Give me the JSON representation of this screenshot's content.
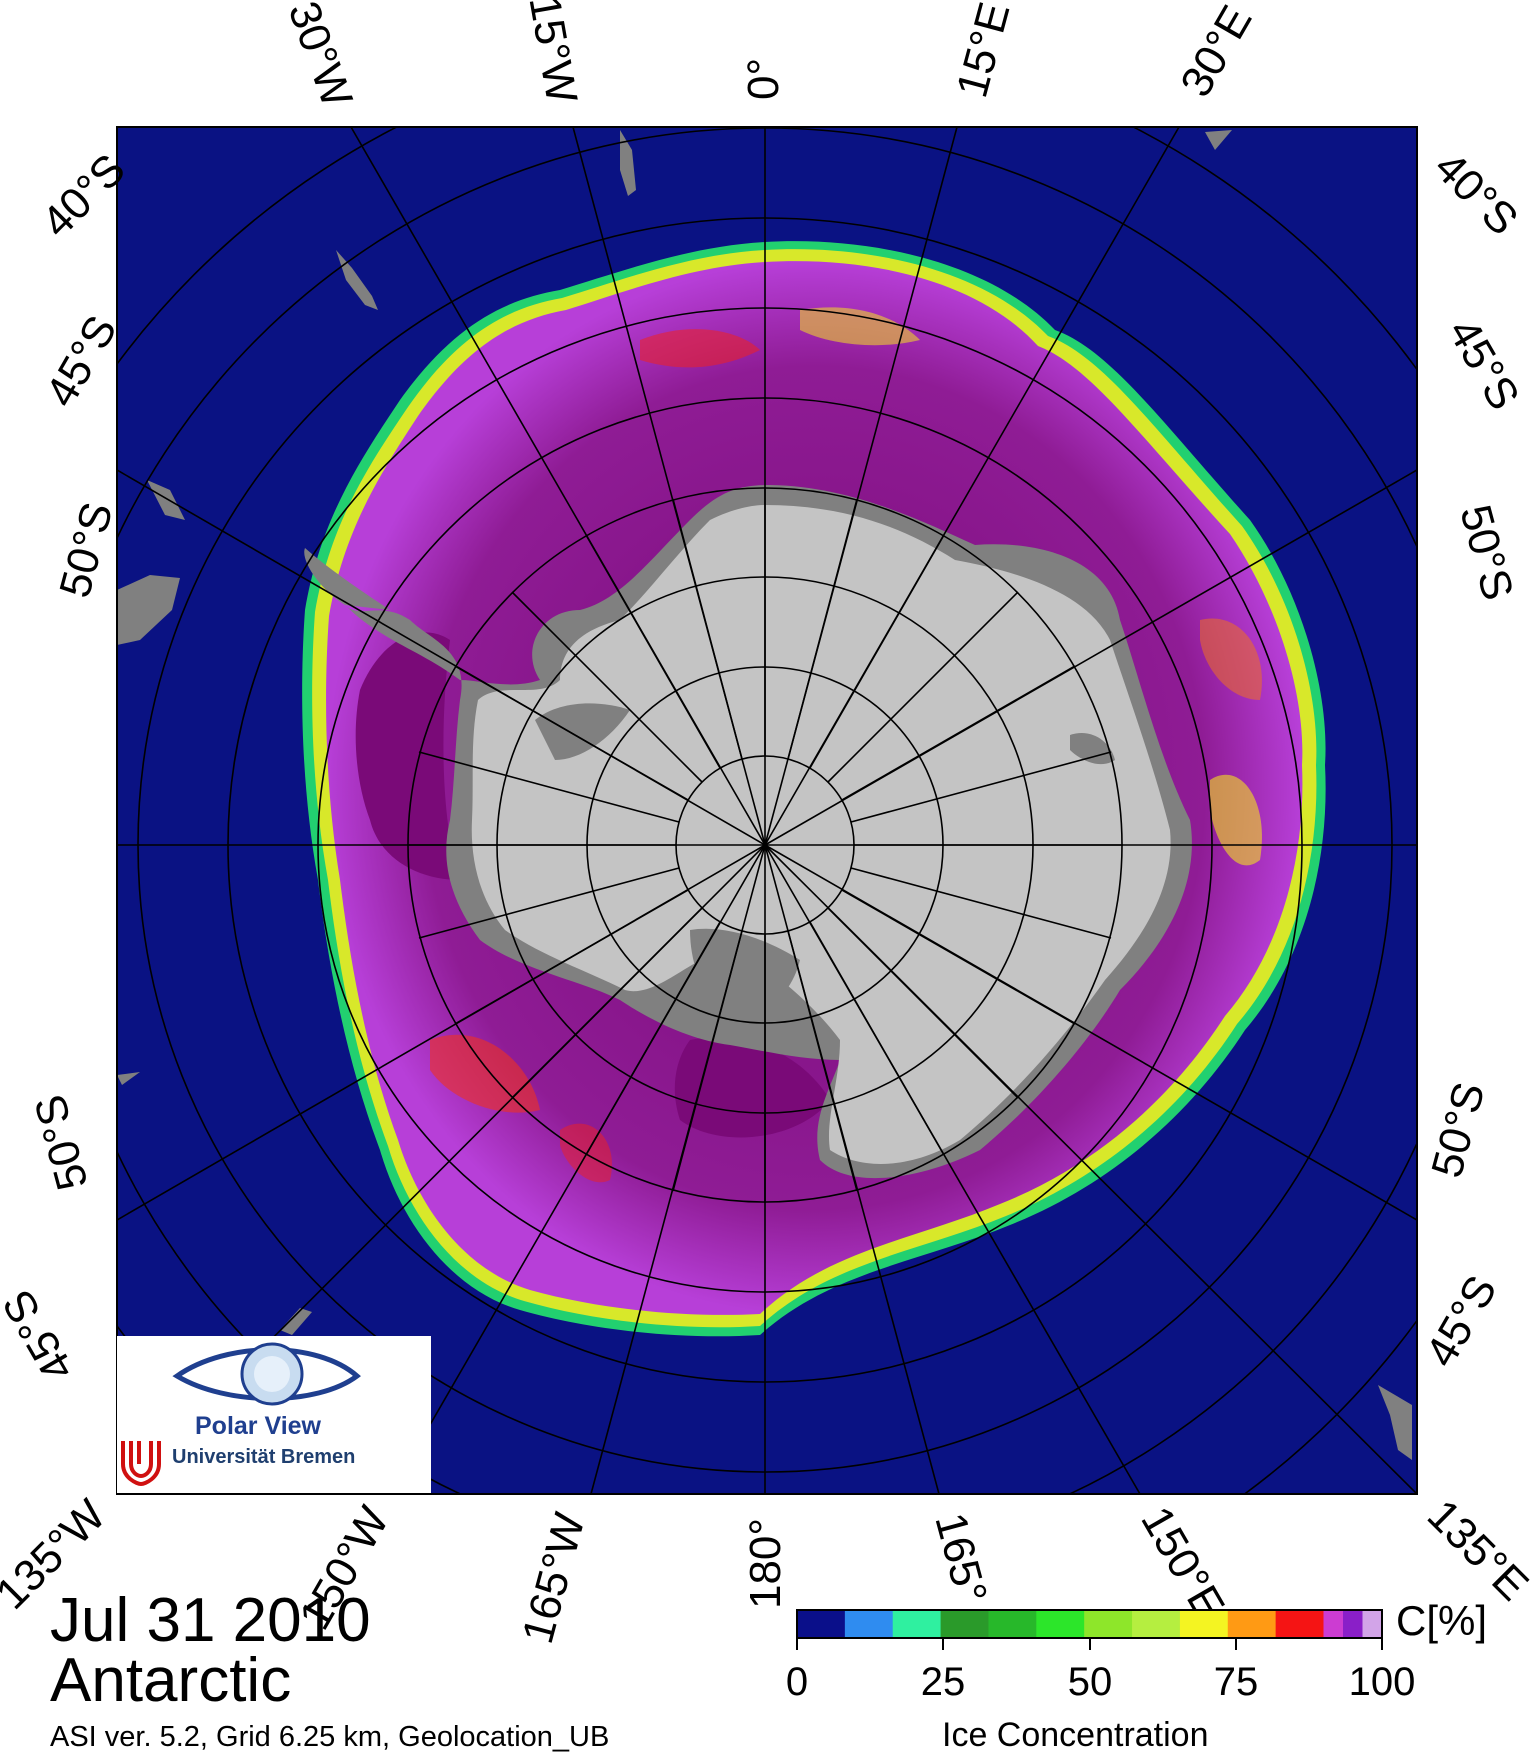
{
  "map": {
    "date": "Jul 31 2010",
    "region": "Antarctic",
    "info": "ASI ver. 5.2,  Grid 6.25 km, Geolocation_UB",
    "top_longitudes": [
      "30°W",
      "15°W",
      "0°",
      "15°E",
      "30°E"
    ],
    "bottom_longitudes": [
      "135°W",
      "150°W",
      "165°W",
      "180°",
      "165°",
      "150°E",
      "135°E"
    ],
    "left_latitudes": [
      "40°S",
      "45°S",
      "50°S",
      "50°S",
      "45°S"
    ],
    "right_latitudes": [
      "40°S",
      "45°S",
      "50°S",
      "50°S",
      "45°S"
    ],
    "colors": {
      "ocean": "#0a1283",
      "land": "#c4c4c4",
      "ice_shelf": "#808080",
      "ice_high": "#9c2fd0",
      "ice_dense": "#7a0a78",
      "grid": "#000000"
    }
  },
  "colorbar": {
    "unit": "C[%]",
    "title": "Ice Concentration",
    "ticks": [
      "0",
      "25",
      "50",
      "75",
      "100"
    ],
    "colors": [
      "#0a0f8a",
      "#2f8cf0",
      "#2ff0a0",
      "#2a9a2a",
      "#27b82a",
      "#2ce62a",
      "#8ee62a",
      "#b5ee40",
      "#f4f422",
      "#ff9a14",
      "#f51414",
      "#cc3cd2",
      "#8a1fc8",
      "#d2a4e8"
    ]
  },
  "logo": {
    "name": "Polar View",
    "institution": "Universität Bremen"
  }
}
